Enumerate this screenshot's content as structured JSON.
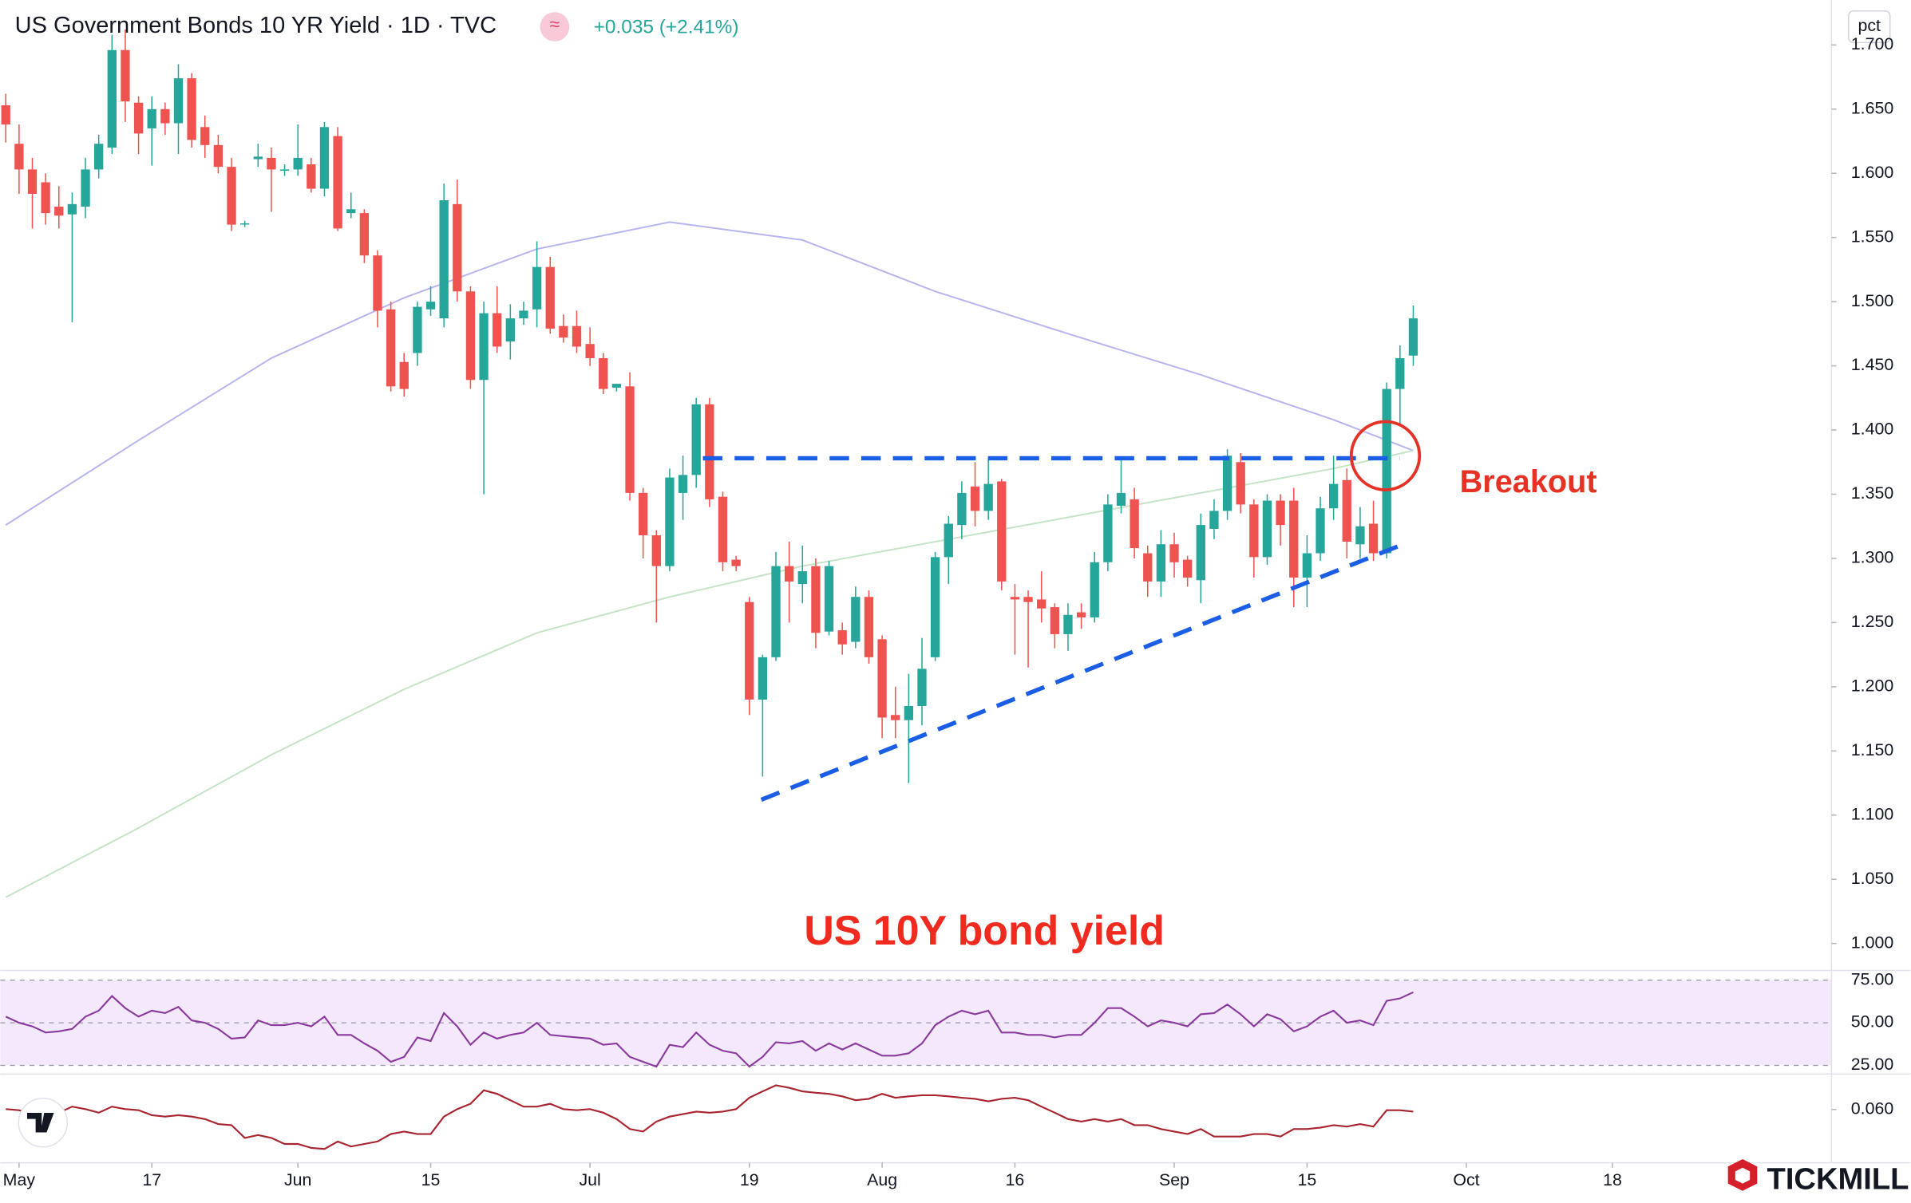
{
  "header": {
    "title": "US Government Bonds 10 YR Yield · 1D · TVC",
    "change": "+0.035 (+2.41%)"
  },
  "brand": "TICKMILL",
  "chart_data": [
    {
      "type": "candlestick",
      "unit": "pct",
      "up_color": "#26a69a",
      "down_color": "#ef5350",
      "grid": false,
      "xlim": [
        -0.413,
        137.5
      ],
      "ylim": [
        0.979,
        1.735
      ],
      "xticks": [
        {
          "value": 1,
          "label": "May"
        },
        {
          "value": 11,
          "label": "17"
        },
        {
          "value": 22,
          "label": "Jun"
        },
        {
          "value": 32,
          "label": "15"
        },
        {
          "value": 44,
          "label": "Jul"
        },
        {
          "value": 56,
          "label": "19"
        },
        {
          "value": 66,
          "label": "Aug"
        },
        {
          "value": 76,
          "label": "16"
        },
        {
          "value": 88,
          "label": "Sep"
        },
        {
          "value": 98,
          "label": "15"
        },
        {
          "value": 110,
          "label": "Oct"
        },
        {
          "value": 121,
          "label": "18"
        }
      ],
      "yticks": [
        {
          "value": 1.0,
          "label": "1.000"
        },
        {
          "value": 1.05,
          "label": "1.050"
        },
        {
          "value": 1.1,
          "label": "1.100"
        },
        {
          "value": 1.15,
          "label": "1.150"
        },
        {
          "value": 1.2,
          "label": "1.200"
        },
        {
          "value": 1.25,
          "label": "1.250"
        },
        {
          "value": 1.3,
          "label": "1.300"
        },
        {
          "value": 1.35,
          "label": "1.350"
        },
        {
          "value": 1.4,
          "label": "1.400"
        },
        {
          "value": 1.45,
          "label": "1.450"
        },
        {
          "value": 1.5,
          "label": "1.500"
        },
        {
          "value": 1.55,
          "label": "1.550"
        },
        {
          "value": 1.6,
          "label": "1.600"
        },
        {
          "value": 1.65,
          "label": "1.650"
        },
        {
          "value": 1.7,
          "label": "1.700"
        }
      ],
      "x": [
        0,
        1,
        2,
        3,
        4,
        5,
        6,
        7,
        8,
        9,
        10,
        11,
        12,
        13,
        14,
        15,
        16,
        17,
        18,
        19,
        20,
        21,
        22,
        23,
        24,
        25,
        26,
        27,
        28,
        29,
        30,
        31,
        32,
        33,
        34,
        35,
        36,
        37,
        38,
        39,
        40,
        41,
        42,
        43,
        44,
        45,
        46,
        47,
        48,
        49,
        50,
        51,
        52,
        53,
        54,
        55,
        56,
        57,
        58,
        59,
        60,
        61,
        62,
        63,
        64,
        65,
        66,
        67,
        68,
        69,
        70,
        71,
        72,
        73,
        74,
        75,
        76,
        77,
        78,
        79,
        80,
        81,
        82,
        83,
        84,
        85,
        86,
        87,
        88,
        89,
        90,
        91,
        92,
        93,
        94,
        95,
        96,
        97,
        98,
        99,
        100,
        101,
        102,
        103,
        104,
        105,
        106
      ],
      "open": [
        1.653,
        1.623,
        1.603,
        1.593,
        1.574,
        1.568,
        1.574,
        1.603,
        1.62,
        1.696,
        1.655,
        1.635,
        1.65,
        1.639,
        1.674,
        1.636,
        1.622,
        1.605,
        1.561,
        1.611,
        1.612,
        1.602,
        1.603,
        1.607,
        1.588,
        1.629,
        1.569,
        1.569,
        1.536,
        1.494,
        1.453,
        1.46,
        1.494,
        1.487,
        1.576,
        1.508,
        1.439,
        1.491,
        1.469,
        1.487,
        1.494,
        1.527,
        1.481,
        1.481,
        1.467,
        1.456,
        1.433,
        1.434,
        1.351,
        1.318,
        1.294,
        1.351,
        1.365,
        1.42,
        1.348,
        1.299,
        1.266,
        1.19,
        1.223,
        1.294,
        1.28,
        1.294,
        1.243,
        1.244,
        1.235,
        1.27,
        1.237,
        1.178,
        1.174,
        1.185,
        1.223,
        1.301,
        1.326,
        1.356,
        1.337,
        1.36,
        1.27,
        1.27,
        1.268,
        1.262,
        1.241,
        1.258,
        1.254,
        1.297,
        1.341,
        1.346,
        1.304,
        1.282,
        1.311,
        1.299,
        1.283,
        1.323,
        1.337,
        1.375,
        1.342,
        1.301,
        1.345,
        1.345,
        1.285,
        1.304,
        1.339,
        1.361,
        1.311,
        1.327,
        1.304,
        1.432,
        1.458
      ],
      "high": [
        1.662,
        1.638,
        1.612,
        1.6,
        1.59,
        1.585,
        1.612,
        1.63,
        1.708,
        1.712,
        1.66,
        1.66,
        1.655,
        1.685,
        1.678,
        1.645,
        1.63,
        1.612,
        1.563,
        1.623,
        1.62,
        1.607,
        1.638,
        1.612,
        1.64,
        1.636,
        1.585,
        1.572,
        1.54,
        1.5,
        1.46,
        1.5,
        1.512,
        1.592,
        1.595,
        1.512,
        1.5,
        1.512,
        1.498,
        1.5,
        1.547,
        1.535,
        1.49,
        1.493,
        1.48,
        1.46,
        1.436,
        1.445,
        1.355,
        1.322,
        1.37,
        1.38,
        1.425,
        1.425,
        1.352,
        1.302,
        1.27,
        1.225,
        1.305,
        1.313,
        1.31,
        1.3,
        1.298,
        1.25,
        1.278,
        1.275,
        1.24,
        1.2,
        1.21,
        1.238,
        1.305,
        1.333,
        1.36,
        1.375,
        1.378,
        1.362,
        1.28,
        1.275,
        1.29,
        1.265,
        1.265,
        1.265,
        1.305,
        1.35,
        1.378,
        1.355,
        1.31,
        1.322,
        1.32,
        1.302,
        1.335,
        1.346,
        1.385,
        1.382,
        1.346,
        1.35,
        1.35,
        1.355,
        1.318,
        1.348,
        1.38,
        1.37,
        1.34,
        1.345,
        1.437,
        1.466,
        1.497
      ],
      "low": [
        1.624,
        1.584,
        1.557,
        1.56,
        1.557,
        1.484,
        1.565,
        1.596,
        1.615,
        1.64,
        1.615,
        1.606,
        1.63,
        1.615,
        1.62,
        1.612,
        1.6,
        1.555,
        1.558,
        1.605,
        1.57,
        1.598,
        1.598,
        1.585,
        1.582,
        1.555,
        1.565,
        1.53,
        1.48,
        1.43,
        1.426,
        1.45,
        1.489,
        1.48,
        1.5,
        1.432,
        1.35,
        1.46,
        1.455,
        1.482,
        1.48,
        1.475,
        1.468,
        1.46,
        1.45,
        1.428,
        1.43,
        1.345,
        1.3,
        1.25,
        1.29,
        1.33,
        1.355,
        1.34,
        1.29,
        1.29,
        1.178,
        1.13,
        1.22,
        1.25,
        1.265,
        1.23,
        1.24,
        1.225,
        1.23,
        1.218,
        1.16,
        1.16,
        1.125,
        1.17,
        1.22,
        1.28,
        1.315,
        1.325,
        1.33,
        1.275,
        1.225,
        1.215,
        1.25,
        1.23,
        1.228,
        1.245,
        1.25,
        1.29,
        1.335,
        1.3,
        1.27,
        1.27,
        1.285,
        1.278,
        1.265,
        1.315,
        1.33,
        1.335,
        1.285,
        1.295,
        1.31,
        1.262,
        1.262,
        1.298,
        1.33,
        1.3,
        1.3,
        1.298,
        1.3,
        1.405,
        1.45
      ],
      "close": [
        1.638,
        1.603,
        1.584,
        1.569,
        1.567,
        1.576,
        1.603,
        1.623,
        1.696,
        1.656,
        1.631,
        1.65,
        1.639,
        1.674,
        1.626,
        1.622,
        1.605,
        1.56,
        1.561,
        1.613,
        1.603,
        1.603,
        1.612,
        1.588,
        1.636,
        1.557,
        1.572,
        1.536,
        1.493,
        1.434,
        1.432,
        1.496,
        1.5,
        1.579,
        1.508,
        1.439,
        1.491,
        1.465,
        1.487,
        1.493,
        1.527,
        1.479,
        1.472,
        1.465,
        1.456,
        1.432,
        1.436,
        1.351,
        1.318,
        1.294,
        1.363,
        1.365,
        1.42,
        1.346,
        1.297,
        1.294,
        1.19,
        1.223,
        1.294,
        1.282,
        1.29,
        1.242,
        1.294,
        1.233,
        1.27,
        1.223,
        1.176,
        1.174,
        1.185,
        1.214,
        1.301,
        1.327,
        1.351,
        1.337,
        1.358,
        1.282,
        1.268,
        1.266,
        1.261,
        1.241,
        1.256,
        1.254,
        1.297,
        1.342,
        1.351,
        1.308,
        1.282,
        1.311,
        1.297,
        1.285,
        1.326,
        1.337,
        1.38,
        1.342,
        1.301,
        1.345,
        1.326,
        1.285,
        1.304,
        1.339,
        1.358,
        1.313,
        1.325,
        1.304,
        1.432,
        1.456,
        1.487
      ],
      "overlays": [
        {
          "color": "#b8b4f0",
          "x": [
            0,
            10,
            20,
            30,
            40,
            50,
            60,
            70,
            80,
            90,
            100,
            106
          ],
          "values": [
            1.326,
            1.392,
            1.456,
            1.503,
            1.541,
            1.562,
            1.548,
            1.508,
            1.475,
            1.443,
            1.408,
            1.384
          ]
        },
        {
          "color": "#c5e4c7",
          "x": [
            0,
            10,
            20,
            30,
            40,
            50,
            60,
            70,
            80,
            90,
            100,
            106
          ],
          "values": [
            1.036,
            1.09,
            1.147,
            1.198,
            1.242,
            1.27,
            1.294,
            1.313,
            1.332,
            1.351,
            1.37,
            1.384
          ]
        }
      ],
      "trend_lines": [
        {
          "color": "#1a5ee6",
          "x": [
            52.5,
            105
          ],
          "values": [
            1.378,
            1.378
          ]
        },
        {
          "color": "#1a5ee6",
          "x": [
            56.9,
            105
          ],
          "values": [
            1.112,
            1.31
          ]
        }
      ],
      "annotations": [
        {
          "text": "Breakout",
          "x": 103.9,
          "y": 1.38,
          "color": "#e53224",
          "marker": "circle"
        },
        {
          "text": "US 10Y bond yield",
          "x": 73.7,
          "y": 1.0076,
          "color": "#f02a1e"
        }
      ]
    },
    {
      "type": "line",
      "color": "#8a3a9e",
      "band_color": "#f1e3fb",
      "grid": true,
      "xlim": [
        -0.413,
        137.5
      ],
      "ylim": [
        20,
        80.7
      ],
      "yticks": [
        {
          "value": 75,
          "label": "75.00"
        },
        {
          "value": 50,
          "label": "50.00"
        },
        {
          "value": 25,
          "label": "25.00"
        }
      ],
      "x": [
        0,
        1,
        2,
        3,
        4,
        5,
        6,
        7,
        8,
        9,
        10,
        11,
        12,
        13,
        14,
        15,
        16,
        17,
        18,
        19,
        20,
        21,
        22,
        23,
        24,
        25,
        26,
        27,
        28,
        29,
        30,
        31,
        32,
        33,
        34,
        35,
        36,
        37,
        38,
        39,
        40,
        41,
        42,
        43,
        44,
        45,
        46,
        47,
        48,
        49,
        50,
        51,
        52,
        53,
        54,
        55,
        56,
        57,
        58,
        59,
        60,
        61,
        62,
        63,
        64,
        65,
        66,
        67,
        68,
        69,
        70,
        71,
        72,
        73,
        74,
        75,
        76,
        77,
        78,
        79,
        80,
        81,
        82,
        83,
        84,
        85,
        86,
        87,
        88,
        89,
        90,
        91,
        92,
        93,
        94,
        95,
        96,
        97,
        98,
        99,
        100,
        101,
        102,
        103,
        104,
        105,
        106
      ],
      "values": [
        53.6,
        50,
        47.9,
        44.3,
        45,
        46.4,
        53.6,
        57.1,
        65.7,
        58.6,
        53.6,
        57.1,
        55.7,
        59.3,
        51.4,
        50,
        46.4,
        40.7,
        41.4,
        51.4,
        48.6,
        48.6,
        50,
        47.9,
        53.6,
        42.9,
        42.9,
        37.9,
        33.6,
        27.1,
        30,
        41.4,
        39.3,
        55.7,
        47.9,
        37.1,
        44.3,
        40.7,
        42.9,
        44.3,
        50,
        42.9,
        42.1,
        41.4,
        40.7,
        37.1,
        37.9,
        30,
        27.1,
        24.3,
        37.1,
        35.7,
        44.3,
        37.1,
        33.6,
        32.1,
        24.3,
        30,
        38.6,
        37.9,
        39.3,
        33.6,
        37.9,
        34.3,
        37.9,
        34.3,
        30.7,
        30.7,
        32.1,
        37.9,
        48.6,
        53.6,
        57.1,
        55,
        57.1,
        44.3,
        44.3,
        42.9,
        42.9,
        41.4,
        42.9,
        42.9,
        50,
        58.6,
        58.6,
        53.6,
        47.9,
        51.4,
        50,
        47.9,
        55,
        55.7,
        60.7,
        55,
        47.9,
        55,
        52.1,
        45,
        47.9,
        53.6,
        57.1,
        50,
        51.4,
        48.6,
        62.9,
        64.3,
        67.9
      ]
    },
    {
      "type": "line",
      "color": "#a8242f",
      "grid": false,
      "xlim": [
        -0.413,
        137.5
      ],
      "ylim": [
        0.045,
        0.07
      ],
      "yticks": [
        {
          "value": 0.06,
          "label": "0.060"
        }
      ],
      "x": [
        0,
        1,
        2,
        3,
        4,
        5,
        6,
        7,
        8,
        9,
        10,
        11,
        12,
        13,
        14,
        15,
        16,
        17,
        18,
        19,
        20,
        21,
        22,
        23,
        24,
        25,
        26,
        27,
        28,
        29,
        30,
        31,
        32,
        33,
        34,
        35,
        36,
        37,
        38,
        39,
        40,
        41,
        42,
        43,
        44,
        45,
        46,
        47,
        48,
        49,
        50,
        51,
        52,
        53,
        54,
        55,
        56,
        57,
        58,
        59,
        60,
        61,
        62,
        63,
        64,
        65,
        66,
        67,
        68,
        69,
        70,
        71,
        72,
        73,
        74,
        75,
        76,
        77,
        78,
        79,
        80,
        81,
        82,
        83,
        84,
        85,
        86,
        87,
        88,
        89,
        90,
        91,
        92,
        93,
        94,
        95,
        96,
        97,
        98,
        99,
        100,
        101,
        102,
        103,
        104,
        105,
        106
      ],
      "values": [
        0.0601,
        0.0598,
        0.0587,
        0.058,
        0.0591,
        0.0608,
        0.0601,
        0.0591,
        0.0608,
        0.0601,
        0.0598,
        0.0584,
        0.058,
        0.0584,
        0.058,
        0.0573,
        0.0559,
        0.0556,
        0.052,
        0.0528,
        0.052,
        0.0503,
        0.0503,
        0.0492,
        0.0489,
        0.051,
        0.0496,
        0.0503,
        0.051,
        0.0531,
        0.0538,
        0.0531,
        0.0531,
        0.058,
        0.0601,
        0.0616,
        0.0654,
        0.0644,
        0.0626,
        0.0608,
        0.0608,
        0.0616,
        0.0601,
        0.0598,
        0.0601,
        0.0591,
        0.0573,
        0.0545,
        0.0538,
        0.0566,
        0.058,
        0.0587,
        0.0594,
        0.0591,
        0.0594,
        0.0601,
        0.0633,
        0.0651,
        0.0668,
        0.0661,
        0.0651,
        0.0647,
        0.0644,
        0.0637,
        0.0626,
        0.063,
        0.0644,
        0.0633,
        0.0637,
        0.064,
        0.064,
        0.0637,
        0.0633,
        0.063,
        0.0623,
        0.063,
        0.0633,
        0.0626,
        0.0608,
        0.0591,
        0.0573,
        0.0566,
        0.0573,
        0.0566,
        0.0573,
        0.0556,
        0.0556,
        0.0545,
        0.0538,
        0.0531,
        0.0545,
        0.0524,
        0.0524,
        0.0524,
        0.0531,
        0.0531,
        0.0524,
        0.0545,
        0.0545,
        0.0549,
        0.0556,
        0.0552,
        0.0559,
        0.0552,
        0.0598,
        0.0598,
        0.0594
      ]
    }
  ]
}
